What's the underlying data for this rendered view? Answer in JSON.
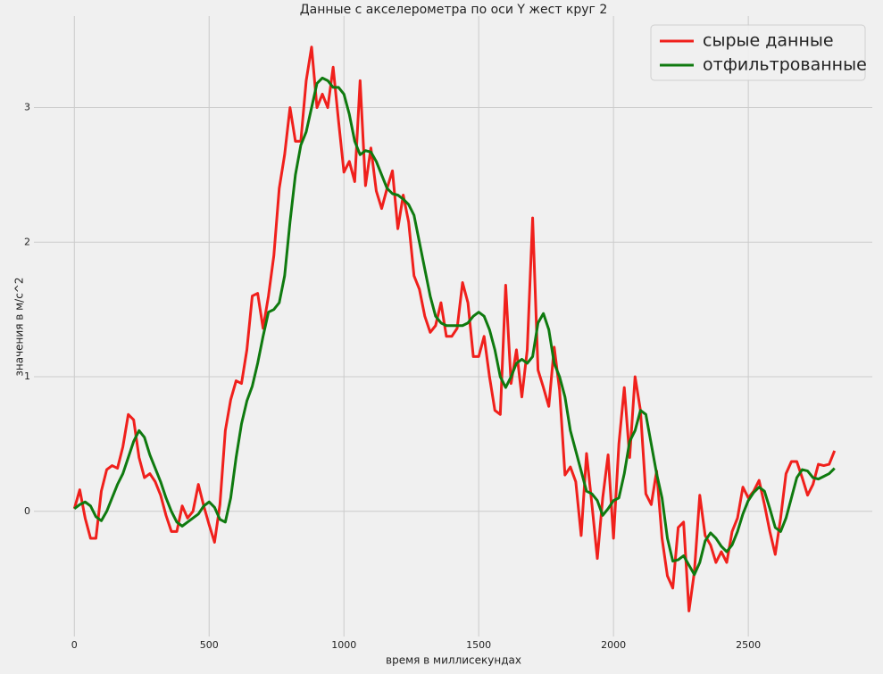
{
  "chart_data": {
    "type": "line",
    "title": "Данные с акселерометра по оси Y жест круг 2",
    "x_label": "время в миллисекундах",
    "y_label": "значения в м/с^2",
    "x": [
      0,
      20,
      40,
      60,
      80,
      100,
      120,
      140,
      160,
      180,
      200,
      220,
      240,
      260,
      280,
      300,
      320,
      340,
      360,
      380,
      400,
      420,
      440,
      460,
      480,
      500,
      520,
      540,
      560,
      580,
      600,
      620,
      640,
      660,
      680,
      700,
      720,
      740,
      760,
      780,
      800,
      820,
      840,
      860,
      880,
      900,
      920,
      940,
      960,
      980,
      1000,
      1020,
      1040,
      1060,
      1080,
      1100,
      1120,
      1140,
      1160,
      1180,
      1200,
      1220,
      1240,
      1260,
      1280,
      1300,
      1320,
      1340,
      1360,
      1380,
      1400,
      1420,
      1440,
      1460,
      1480,
      1500,
      1520,
      1540,
      1560,
      1580,
      1600,
      1620,
      1640,
      1660,
      1680,
      1700,
      1720,
      1740,
      1760,
      1780,
      1800,
      1820,
      1840,
      1860,
      1880,
      1900,
      1920,
      1940,
      1960,
      1980,
      2000,
      2020,
      2040,
      2060,
      2080,
      2100,
      2120,
      2140,
      2160,
      2180,
      2200,
      2220,
      2240,
      2260,
      2280,
      2300,
      2320,
      2340,
      2360,
      2380,
      2400,
      2420,
      2440,
      2460,
      2480,
      2500,
      2520,
      2540,
      2560,
      2580,
      2600,
      2620,
      2640,
      2660,
      2680,
      2700,
      2720,
      2740,
      2760,
      2780,
      2800,
      2820
    ],
    "series": [
      {
        "name": "сырые данные",
        "color": "#f0201c",
        "values": [
          0.02,
          0.16,
          -0.05,
          -0.2,
          -0.2,
          0.15,
          0.31,
          0.34,
          0.32,
          0.48,
          0.72,
          0.68,
          0.4,
          0.25,
          0.28,
          0.22,
          0.12,
          -0.03,
          -0.15,
          -0.15,
          0.04,
          -0.05,
          0.0,
          0.2,
          0.04,
          -0.1,
          -0.23,
          0.05,
          0.6,
          0.83,
          0.97,
          0.95,
          1.2,
          1.6,
          1.62,
          1.36,
          1.6,
          1.9,
          2.4,
          2.65,
          3.0,
          2.75,
          2.75,
          3.2,
          3.45,
          3.0,
          3.1,
          3.0,
          3.3,
          2.9,
          2.52,
          2.6,
          2.45,
          3.2,
          2.42,
          2.7,
          2.38,
          2.25,
          2.4,
          2.53,
          2.1,
          2.35,
          2.15,
          1.75,
          1.65,
          1.45,
          1.33,
          1.38,
          1.55,
          1.3,
          1.3,
          1.36,
          1.7,
          1.55,
          1.15,
          1.15,
          1.3,
          1.0,
          0.75,
          0.72,
          1.68,
          0.95,
          1.2,
          0.85,
          1.2,
          2.18,
          1.05,
          0.92,
          0.78,
          1.22,
          0.9,
          0.27,
          0.33,
          0.22,
          -0.18,
          0.43,
          0.05,
          -0.35,
          0.1,
          0.42,
          -0.2,
          0.5,
          0.92,
          0.4,
          1.0,
          0.75,
          0.13,
          0.05,
          0.3,
          -0.2,
          -0.48,
          -0.57,
          -0.12,
          -0.08,
          -0.74,
          -0.45,
          0.12,
          -0.18,
          -0.25,
          -0.38,
          -0.3,
          -0.38,
          -0.15,
          -0.05,
          0.18,
          0.1,
          0.15,
          0.23,
          0.05,
          -0.15,
          -0.32,
          -0.05,
          0.28,
          0.37,
          0.37,
          0.25,
          0.12,
          0.2,
          0.35,
          0.34,
          0.35,
          0.45
        ]
      },
      {
        "name": "отфильтрованные",
        "color": "#0f7a0f",
        "values": [
          0.02,
          0.05,
          0.07,
          0.04,
          -0.04,
          -0.07,
          0.0,
          0.1,
          0.2,
          0.28,
          0.4,
          0.52,
          0.6,
          0.55,
          0.42,
          0.32,
          0.22,
          0.1,
          0.0,
          -0.08,
          -0.11,
          -0.08,
          -0.05,
          -0.02,
          0.04,
          0.07,
          0.03,
          -0.06,
          -0.08,
          0.1,
          0.4,
          0.65,
          0.82,
          0.93,
          1.1,
          1.3,
          1.48,
          1.5,
          1.55,
          1.75,
          2.15,
          2.5,
          2.72,
          2.82,
          3.0,
          3.18,
          3.22,
          3.2,
          3.15,
          3.15,
          3.1,
          2.95,
          2.75,
          2.65,
          2.68,
          2.67,
          2.6,
          2.5,
          2.4,
          2.36,
          2.35,
          2.32,
          2.28,
          2.2,
          2.0,
          1.8,
          1.6,
          1.45,
          1.4,
          1.38,
          1.38,
          1.38,
          1.38,
          1.4,
          1.45,
          1.48,
          1.45,
          1.35,
          1.2,
          1.0,
          0.92,
          1.0,
          1.1,
          1.13,
          1.1,
          1.15,
          1.4,
          1.47,
          1.35,
          1.1,
          1.0,
          0.85,
          0.6,
          0.45,
          0.3,
          0.15,
          0.13,
          0.08,
          -0.03,
          0.02,
          0.08,
          0.1,
          0.28,
          0.52,
          0.6,
          0.75,
          0.72,
          0.5,
          0.28,
          0.1,
          -0.2,
          -0.37,
          -0.36,
          -0.33,
          -0.4,
          -0.47,
          -0.38,
          -0.22,
          -0.16,
          -0.2,
          -0.26,
          -0.3,
          -0.25,
          -0.15,
          -0.02,
          0.08,
          0.14,
          0.18,
          0.15,
          0.02,
          -0.12,
          -0.15,
          -0.05,
          0.1,
          0.25,
          0.31,
          0.3,
          0.25,
          0.24,
          0.26,
          0.28,
          0.32
        ]
      }
    ],
    "xlim": [
      -150,
      2960
    ],
    "ylim": [
      -0.93,
      3.68
    ],
    "xticks": [
      0,
      500,
      1000,
      1500,
      2000,
      2500
    ],
    "yticks": [
      0,
      1,
      2,
      3
    ],
    "grid": true,
    "legend": "upper right"
  }
}
